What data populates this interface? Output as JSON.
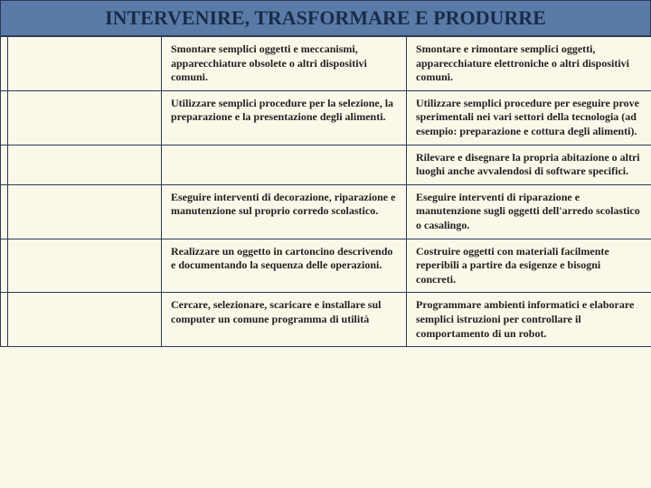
{
  "header": {
    "title": "INTERVENIRE, TRASFORMARE E PRODURRE"
  },
  "table": {
    "rows": [
      {
        "c3": "Smontare semplici oggetti e meccanismi, apparecchiature obsolete o altri dispositivi comuni.",
        "c4": "Smontare e rimontare semplici oggetti, apparecchiature elettroniche o altri dispositivi comuni."
      },
      {
        "c3": "Utilizzare semplici procedure per la selezione, la preparazione e la presentazione degli alimenti.",
        "c4": "Utilizzare semplici procedure per eseguire prove sperimentali nei vari settori della tecnologia (ad esempio: preparazione e cottura degli alimenti)."
      },
      {
        "c3": "",
        "c4": "Rilevare e disegnare la propria abitazione o altri luoghi anche avvalendosi di software specifici."
      },
      {
        "c3": "Eseguire interventi di decorazione, riparazione e manutenzione sul proprio corredo scolastico.",
        "c4": "Eseguire interventi di riparazione e manutenzione sugli oggetti dell'arredo scolastico o casalingo."
      },
      {
        "c3": "Realizzare un oggetto in cartoncino descrivendo e documentando la sequenza delle operazioni.",
        "c4": "Costruire oggetti con materiali facilmente reperibili a partire da esigenze e bisogni concreti."
      },
      {
        "c3": "Cercare, selezionare, scaricare e installare sul computer un comune programma di utilità",
        "c4": "Programmare ambienti informatici e elaborare semplici istruzioni per controllare il comportamento di un robot."
      }
    ]
  },
  "colors": {
    "header_bg": "#5a7ba8",
    "header_text": "#1a2b48",
    "page_bg": "#faf8e8",
    "border": "#2a3a56"
  }
}
